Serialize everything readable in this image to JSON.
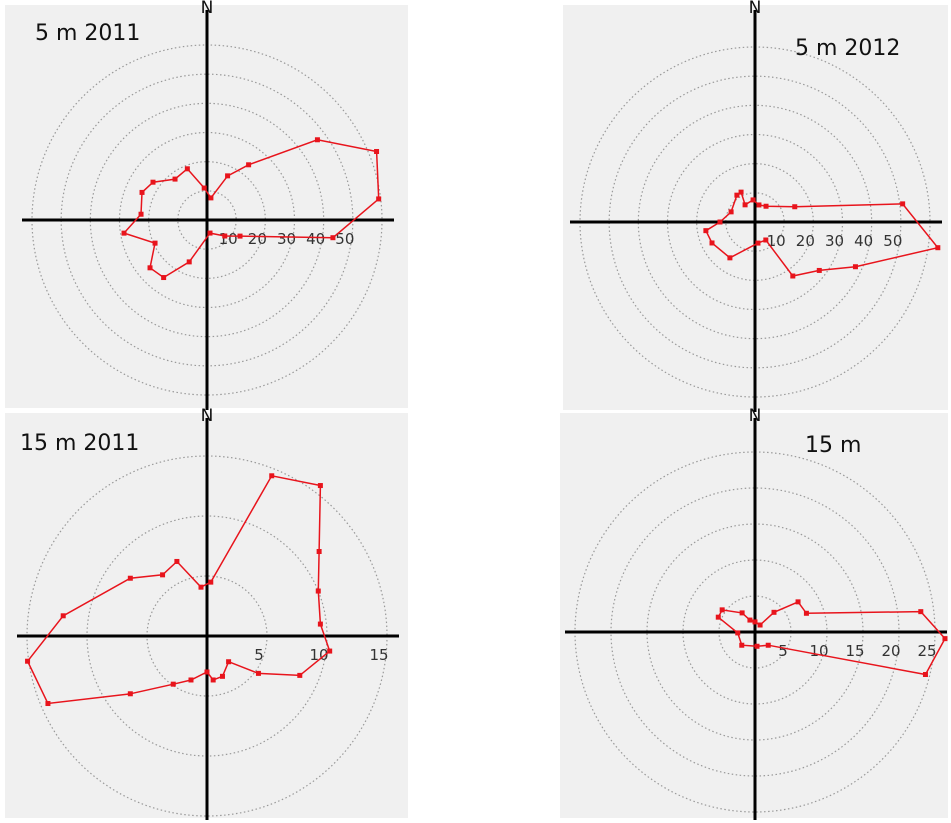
{
  "chart_data": [
    {
      "type": "polar",
      "title": "5 m 2011",
      "north_label": "N",
      "color": "#e8141c",
      "rlim": [
        0,
        60
      ],
      "rticks": [
        10,
        20,
        30,
        40,
        50
      ],
      "theta": [
        10,
        25,
        37,
        54,
        68,
        83,
        98,
        116,
        132,
        167,
        203,
        217,
        230,
        246,
        261,
        275,
        293,
        305,
        322,
        339,
        355
      ],
      "values": [
        7.7,
        16.7,
        23.7,
        46.8,
        62.7,
        59.3,
        43.6,
        12.6,
        8.2,
        4.6,
        15.6,
        24.7,
        25.5,
        19.5,
        28.8,
        22.7,
        24.2,
        22.6,
        17.8,
        18.8,
        11
      ]
    },
    {
      "type": "polar",
      "title": "5 m 2012",
      "north_label": "N",
      "color": "#e8141c",
      "rlim": [
        0,
        60
      ],
      "rticks": [
        10,
        20,
        30,
        40,
        50
      ],
      "theta": [
        13,
        35,
        69,
        83,
        98,
        114,
        127,
        145,
        149,
        172,
        215,
        244,
        260,
        270,
        293,
        326,
        335,
        330,
        355
      ],
      "values": [
        6.0,
        6.6,
        14.6,
        51,
        63.3,
        37.7,
        27.6,
        22.6,
        7.2,
        7.3,
        15,
        16.4,
        17.1,
        12,
        8.9,
        11.1,
        11.3,
        6.8,
        7.6
      ]
    },
    {
      "type": "polar",
      "title": "15 m 2011",
      "north_label": "N",
      "color": "#e8141c",
      "rlim": [
        0,
        15
      ],
      "rticks": [
        5,
        10,
        15
      ],
      "theta": [
        4,
        22,
        37,
        53,
        68,
        84,
        97,
        113,
        126,
        140,
        159,
        172,
        180,
        200,
        215,
        233,
        247,
        262,
        278,
        307,
        324,
        338,
        353
      ],
      "values": [
        4.5,
        14.4,
        15.7,
        11.7,
        10.0,
        9.5,
        10.3,
        8.4,
        5.3,
        2.8,
        3.6,
        3.7,
        3.0,
        3.9,
        4.9,
        8.0,
        14.4,
        15.1,
        12.1,
        8.0,
        6.3,
        6.7,
        4.1
      ]
    },
    {
      "type": "polar",
      "title": "15 m",
      "north_label": "N",
      "color": "#e8141c",
      "rlim": [
        0,
        25
      ],
      "rticks": [
        5,
        10,
        15,
        20,
        25
      ],
      "theta": [
        36,
        44,
        55,
        70,
        83,
        92,
        104,
        135,
        172,
        225,
        267,
        292,
        304,
        326,
        337,
        0
      ],
      "values": [
        1.2,
        3.8,
        7.3,
        7.6,
        23.2,
        26.4,
        24.4,
        2.6,
        2.0,
        2.6,
        2.4,
        5.5,
        5.5,
        3.2,
        1.8,
        1.4
      ]
    }
  ]
}
